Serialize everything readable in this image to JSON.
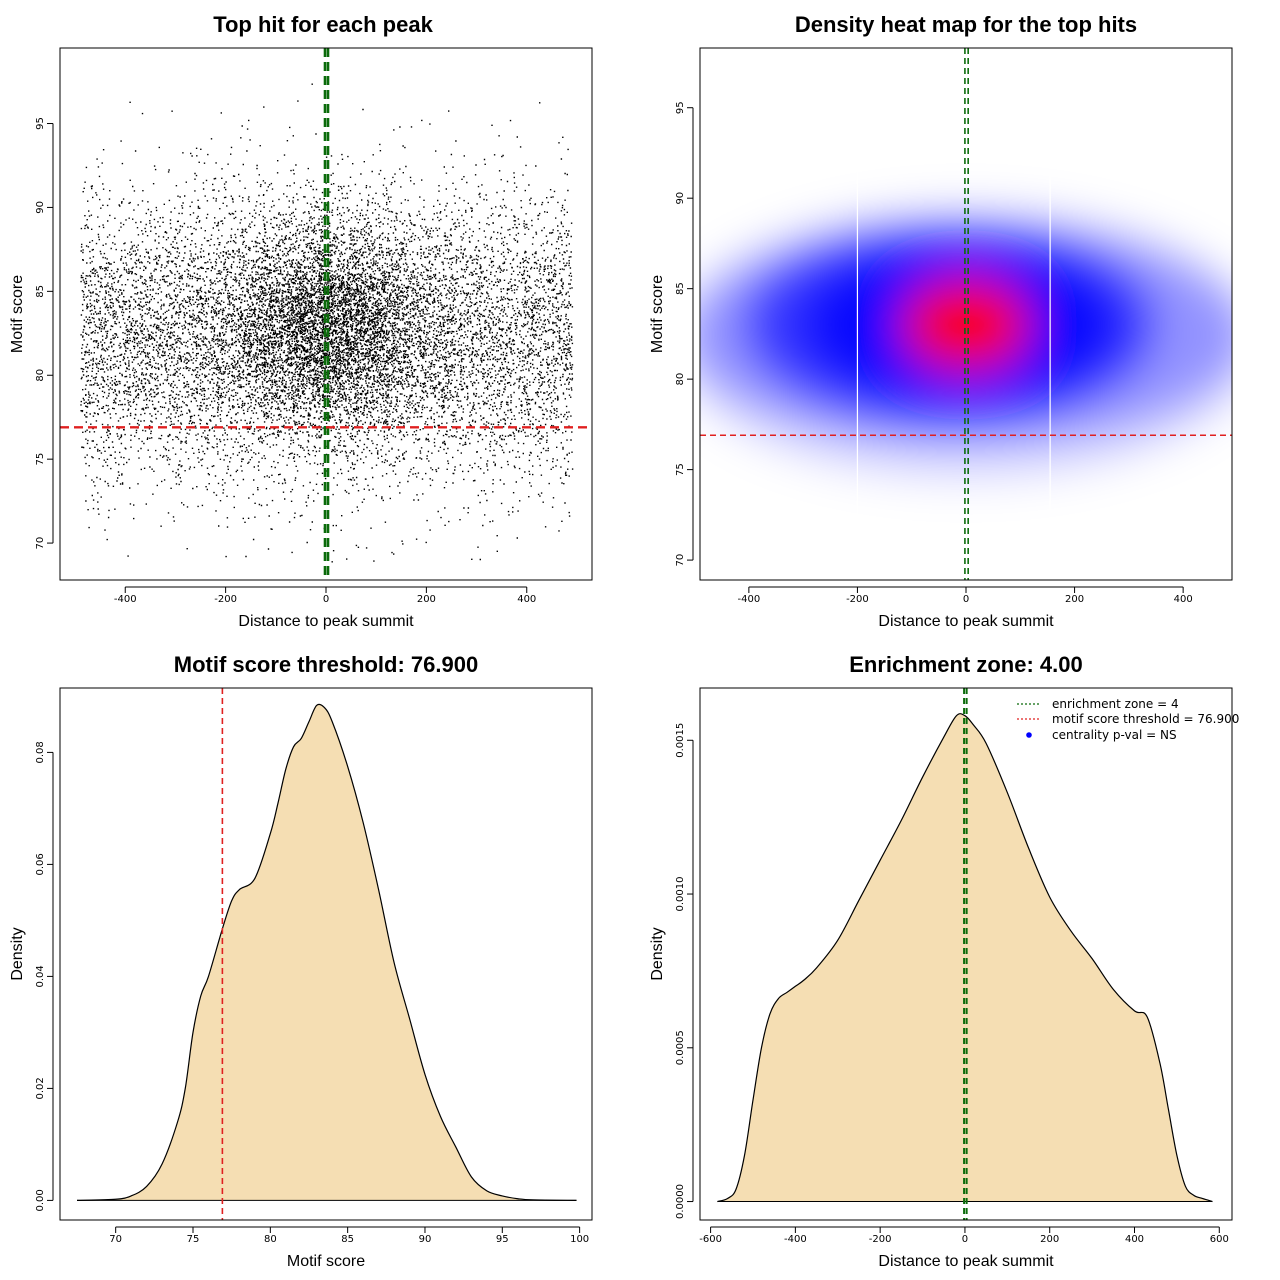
{
  "colors": {
    "fill": "#f5deb3",
    "threshold": "#e02020",
    "zone": "#0b6b0b",
    "heat_low": "#0000ff",
    "heat_high": "#ff0000",
    "points": "#000000",
    "centrality_marker": "#0000ff"
  },
  "chart_data": [
    {
      "id": "scatter",
      "type": "scatter",
      "title": "Top hit for each peak",
      "xlabel": "Distance to peak summit",
      "ylabel": "Motif score",
      "xlim": [
        -530,
        530
      ],
      "ylim": [
        67.8,
        99.5
      ],
      "xticks": [
        -400,
        -200,
        0,
        200,
        400
      ],
      "yticks": [
        70,
        75,
        80,
        85,
        90,
        95
      ],
      "x_range_of_points": [
        -490,
        490
      ],
      "y_range_of_points": [
        68.9,
        98.2
      ],
      "point_cloud_center": [
        0,
        83
      ],
      "approx_point_count": 14000,
      "threshold_line": 76.9,
      "zone_lines": [
        -2,
        4
      ]
    },
    {
      "id": "heatmap",
      "type": "heatmap",
      "title": "Density heat map for the top hits",
      "xlabel": "Distance to peak summit",
      "ylabel": "Motif score",
      "xlim": [
        -490,
        490
      ],
      "ylim": [
        68.9,
        98.3
      ],
      "xticks": [
        -400,
        -200,
        0,
        200,
        400
      ],
      "yticks": [
        70,
        75,
        80,
        85,
        90,
        95
      ],
      "density_peak": [
        0,
        83
      ],
      "threshold_line": 76.9,
      "zone_lines": [
        -2,
        4
      ],
      "vertical_white_lines": [
        -200,
        155
      ]
    },
    {
      "id": "score_density",
      "type": "area",
      "title": "Motif score threshold: 76.900",
      "xlabel": "Motif score",
      "ylabel": "Density",
      "xlim": [
        66.4,
        100.8
      ],
      "ylim": [
        -0.0035,
        0.0915
      ],
      "xticks": [
        70,
        75,
        80,
        85,
        90,
        95,
        100
      ],
      "yticks": [
        0.0,
        0.02,
        0.04,
        0.06,
        0.08
      ],
      "ytick_labels": [
        "0.00",
        "0.02",
        "0.04",
        "0.06",
        "0.08"
      ],
      "x": [
        67.5,
        70,
        71,
        72,
        73,
        74,
        74.5,
        75,
        75.5,
        76,
        76.9,
        77.5,
        78,
        79,
        80,
        80.5,
        81,
        81.5,
        82,
        82.5,
        83,
        83.5,
        84,
        85,
        86,
        87,
        88,
        89,
        90,
        91,
        92,
        93,
        94,
        95,
        96,
        97,
        99.8
      ],
      "y": [
        0,
        0.0002,
        0.0008,
        0.0025,
        0.0065,
        0.014,
        0.02,
        0.03,
        0.0365,
        0.04,
        0.0485,
        0.0535,
        0.0555,
        0.0575,
        0.0655,
        0.071,
        0.077,
        0.081,
        0.0825,
        0.0855,
        0.0884,
        0.088,
        0.0855,
        0.0775,
        0.0675,
        0.0555,
        0.0425,
        0.0325,
        0.0225,
        0.015,
        0.0095,
        0.0042,
        0.0017,
        0.0008,
        0.0003,
        0.0001,
        0
      ],
      "threshold_line": 76.9
    },
    {
      "id": "distance_density",
      "type": "area",
      "title": "Enrichment zone: 4.00",
      "xlabel": "Distance to peak summit",
      "ylabel": "Density",
      "xlim": [
        -625,
        630
      ],
      "ylim": [
        -6e-05,
        0.00167
      ],
      "xticks": [
        -600,
        -400,
        -200,
        0,
        200,
        400,
        600
      ],
      "yticks": [
        0.0,
        0.0005,
        0.001,
        0.0015
      ],
      "ytick_labels": [
        "0.0000",
        "0.0005",
        "0.0010",
        "0.0015"
      ],
      "x": [
        -584,
        -560,
        -540,
        -520,
        -500,
        -480,
        -460,
        -440,
        -420,
        -400,
        -380,
        -350,
        -300,
        -250,
        -200,
        -150,
        -100,
        -50,
        -20,
        0,
        20,
        50,
        100,
        150,
        200,
        250,
        300,
        350,
        400,
        430,
        460,
        480,
        500,
        520,
        540,
        560,
        584
      ],
      "y": [
        0,
        1e-05,
        4e-05,
        0.00015,
        0.00033,
        0.0005,
        0.00061,
        0.00066,
        0.00068,
        0.0007,
        0.00072,
        0.00076,
        0.00085,
        0.00098,
        0.00111,
        0.00124,
        0.00138,
        0.00151,
        0.00158,
        0.00158,
        0.00155,
        0.00149,
        0.00133,
        0.00115,
        0.00099,
        0.00088,
        0.00079,
        0.00069,
        0.00062,
        0.0006,
        0.00045,
        0.0003,
        0.00015,
        5e-05,
        2e-05,
        1e-05,
        0
      ],
      "zone_lines": [
        -2,
        4
      ],
      "legend": {
        "position": "top-right",
        "entries": [
          {
            "label": "enrichment zone = 4",
            "style": "dotted",
            "color": "#0b6b0b"
          },
          {
            "label": "motif score threshold = 76.900",
            "style": "dotted",
            "color": "#e02020"
          },
          {
            "label": "centrality p-val = NS",
            "style": "point",
            "color": "#0000ff"
          }
        ]
      }
    }
  ]
}
